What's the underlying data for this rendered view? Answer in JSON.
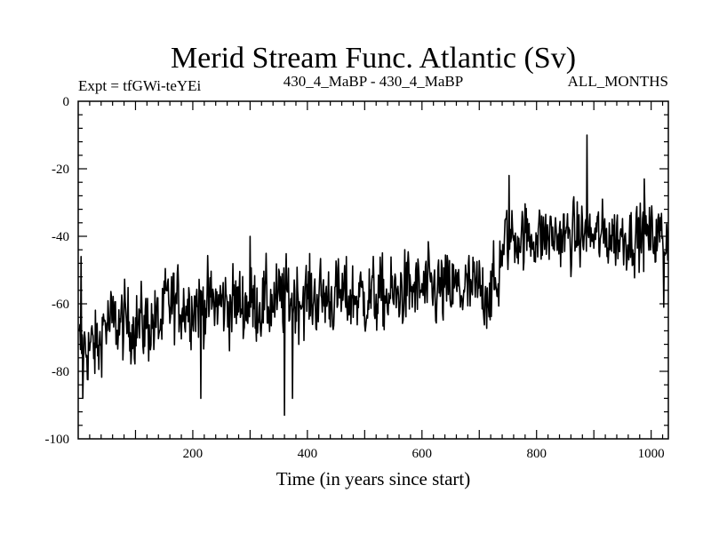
{
  "chart_data": {
    "type": "line",
    "title": "Merid Stream Func. Atlantic (Sv)",
    "subtitle_left": "Expt = tfGWi-teYEi",
    "subtitle_center": "430_4_MaBP - 430_4_MaBP",
    "subtitle_right": "ALL_MONTHS",
    "xlabel": "Time (in years since start)",
    "ylabel": "",
    "xlim": [
      0,
      1030
    ],
    "ylim": [
      -100,
      0
    ],
    "x_ticks": [
      200,
      400,
      600,
      800,
      1000
    ],
    "y_ticks": [
      0,
      -20,
      -40,
      -60,
      -80,
      -100
    ],
    "grid": false,
    "series": [
      {
        "color": "#000000",
        "x_start": 1,
        "x_step": 1,
        "segments": [
          {
            "x_from": 1,
            "x_to": 40,
            "mean": -73,
            "noise": 7
          },
          {
            "x_from": 40,
            "x_to": 150,
            "mean": -66,
            "noise": 7
          },
          {
            "x_from": 150,
            "x_to": 350,
            "mean": -60,
            "noise": 7
          },
          {
            "x_from": 350,
            "x_to": 560,
            "mean": -58,
            "noise": 7
          },
          {
            "x_from": 560,
            "x_to": 735,
            "mean": -56,
            "noise": 7
          },
          {
            "x_from": 735,
            "x_to": 745,
            "mean": -45,
            "noise": 5
          },
          {
            "x_from": 745,
            "x_to": 1030,
            "mean": -40,
            "noise": 6
          }
        ],
        "extremes": [
          {
            "x": 5,
            "y": -46
          },
          {
            "x": 8,
            "y": -88
          },
          {
            "x": 214,
            "y": -88
          },
          {
            "x": 300,
            "y": -40
          },
          {
            "x": 360,
            "y": -93
          },
          {
            "x": 374,
            "y": -88
          },
          {
            "x": 752,
            "y": -22
          },
          {
            "x": 888,
            "y": -10
          },
          {
            "x": 988,
            "y": -23
          },
          {
            "x": 1022,
            "y": -61
          }
        ]
      }
    ]
  }
}
